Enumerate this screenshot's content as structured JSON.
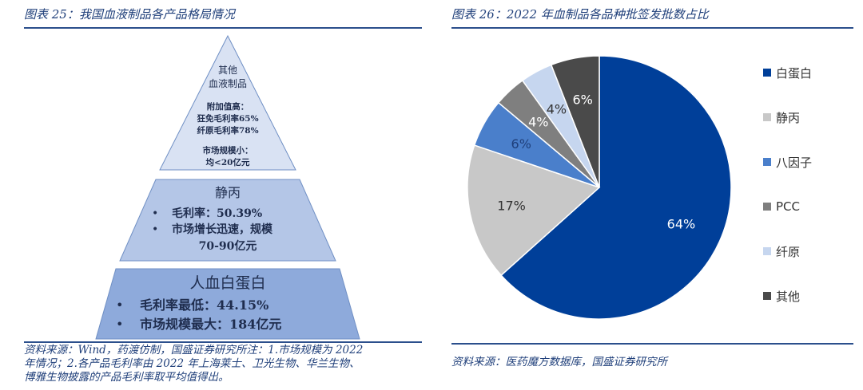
{
  "left": {
    "title": "图表 25：我国血液制品各产品格局情况",
    "note_lines": [
      "资料来源：Wind，药渡仿制，国盛证券研究所注：1.市场规模为 2022",
      "年情况；2.各产品毛利率由 2022 年上海莱士、卫光生物、华兰生物、",
      "博雅生物披露的产品毛利率取平均值得出。"
    ],
    "pyramid": {
      "top": {
        "title_lines": [
          "其他",
          "血液制品"
        ],
        "lines": [
          "附加值高：",
          "狂免毛利率65%",
          "纤原毛利率78%"
        ],
        "lines2": [
          "市场规模小：",
          "均<20亿元"
        ]
      },
      "middle": {
        "title": "静丙",
        "bullets": [
          "毛利率：50.39%",
          "市场增长迅速，规模",
          "70-90亿元"
        ]
      },
      "bottom": {
        "title": "人血白蛋白",
        "bullets": [
          "毛利率最低：44.15%",
          "市场规模最大：184亿元"
        ]
      }
    }
  },
  "right": {
    "title": "图表 26：2022 年血制品各品种批签发批数占比",
    "note": "资料来源：医药魔方数据库，国盛证券研究所"
  },
  "chart_data": {
    "type": "pie",
    "title": "2022 年血制品各品种批签发批数占比",
    "categories": [
      "白蛋白",
      "静丙",
      "八因子",
      "PCC",
      "纤原",
      "其他"
    ],
    "values": [
      64,
      17,
      6,
      4,
      4,
      6
    ],
    "labels": [
      "64%",
      "17%",
      "6%",
      "4%",
      "4%",
      "6%"
    ],
    "colors": [
      "#003f99",
      "#c8c8c8",
      "#4a7fcb",
      "#7f7f7f",
      "#c6d6ef",
      "#4a4a4a"
    ],
    "label_colors": [
      "#ffffff",
      "#333333",
      "#1f3f7a",
      "#ffffff",
      "#333333",
      "#ffffff"
    ],
    "legend_position": "right"
  }
}
